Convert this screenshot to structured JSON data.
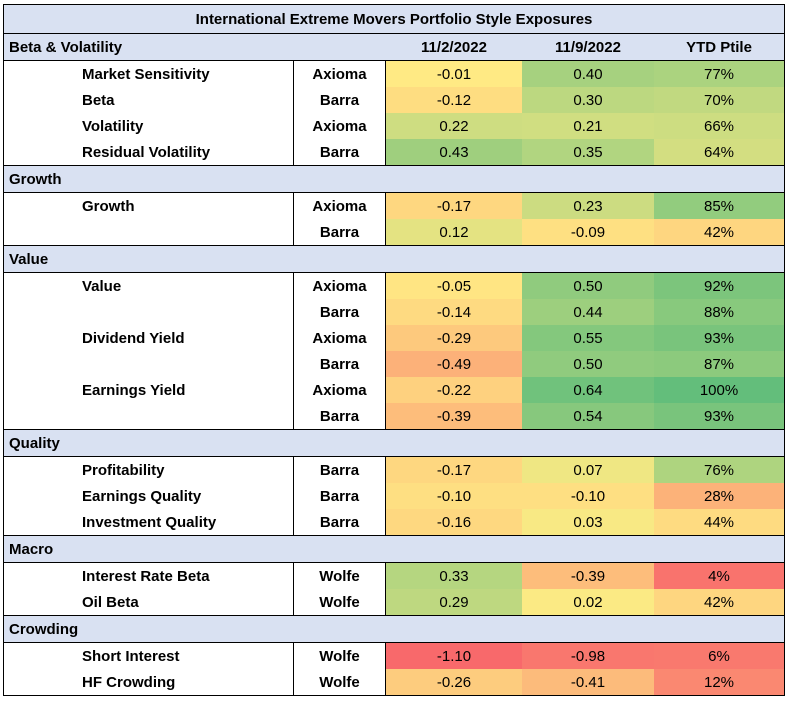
{
  "title": "International Extreme Movers Portfolio Style Exposures",
  "columns": {
    "c1": "11/2/2022",
    "c2": "11/9/2022",
    "c3": "YTD Ptile"
  },
  "colors": {
    "header_fill": "#D9E1F2",
    "border": "#000000"
  },
  "sections": [
    {
      "name": "Beta & Volatility",
      "rows": [
        {
          "factor": "Market Sensitivity",
          "source": "Axioma",
          "v1": "-0.01",
          "v2": "0.40",
          "v3": "77%"
        },
        {
          "factor": "Beta",
          "source": "Barra",
          "v1": "-0.12",
          "v2": "0.30",
          "v3": "70%"
        },
        {
          "factor": "Volatility",
          "source": "Axioma",
          "v1": "0.22",
          "v2": "0.21",
          "v3": "66%"
        },
        {
          "factor": "Residual Volatility",
          "source": "Barra",
          "v1": "0.43",
          "v2": "0.35",
          "v3": "64%"
        }
      ]
    },
    {
      "name": "Growth",
      "rows": [
        {
          "factor": "Growth",
          "source": "Axioma",
          "v1": "-0.17",
          "v2": "0.23",
          "v3": "85%"
        },
        {
          "factor": "",
          "source": "Barra",
          "v1": "0.12",
          "v2": "-0.09",
          "v3": "42%"
        }
      ]
    },
    {
      "name": "Value",
      "rows": [
        {
          "factor": "Value",
          "source": "Axioma",
          "v1": "-0.05",
          "v2": "0.50",
          "v3": "92%"
        },
        {
          "factor": "",
          "source": "Barra",
          "v1": "-0.14",
          "v2": "0.44",
          "v3": "88%"
        },
        {
          "factor": "Dividend Yield",
          "source": "Axioma",
          "v1": "-0.29",
          "v2": "0.55",
          "v3": "93%"
        },
        {
          "factor": "",
          "source": "Barra",
          "v1": "-0.49",
          "v2": "0.50",
          "v3": "87%"
        },
        {
          "factor": "Earnings Yield",
          "source": "Axioma",
          "v1": "-0.22",
          "v2": "0.64",
          "v3": "100%"
        },
        {
          "factor": "",
          "source": "Barra",
          "v1": "-0.39",
          "v2": "0.54",
          "v3": "93%"
        }
      ]
    },
    {
      "name": "Quality",
      "rows": [
        {
          "factor": "Profitability",
          "source": "Barra",
          "v1": "-0.17",
          "v2": "0.07",
          "v3": "76%"
        },
        {
          "factor": "Earnings Quality",
          "source": "Barra",
          "v1": "-0.10",
          "v2": "-0.10",
          "v3": "28%"
        },
        {
          "factor": "Investment Quality",
          "source": "Barra",
          "v1": "-0.16",
          "v2": "0.03",
          "v3": "44%"
        }
      ]
    },
    {
      "name": "Macro",
      "rows": [
        {
          "factor": "Interest Rate Beta",
          "source": "Wolfe",
          "v1": "0.33",
          "v2": "-0.39",
          "v3": "4%"
        },
        {
          "factor": "Oil Beta",
          "source": "Wolfe",
          "v1": "0.29",
          "v2": "0.02",
          "v3": "42%"
        }
      ]
    },
    {
      "name": "Crowding",
      "rows": [
        {
          "factor": "Short Interest",
          "source": "Wolfe",
          "v1": "-1.10",
          "v2": "-0.98",
          "v3": "6%"
        },
        {
          "factor": "HF Crowding",
          "source": "Wolfe",
          "v1": "-0.26",
          "v2": "-0.41",
          "v3": "12%"
        }
      ]
    }
  ]
}
